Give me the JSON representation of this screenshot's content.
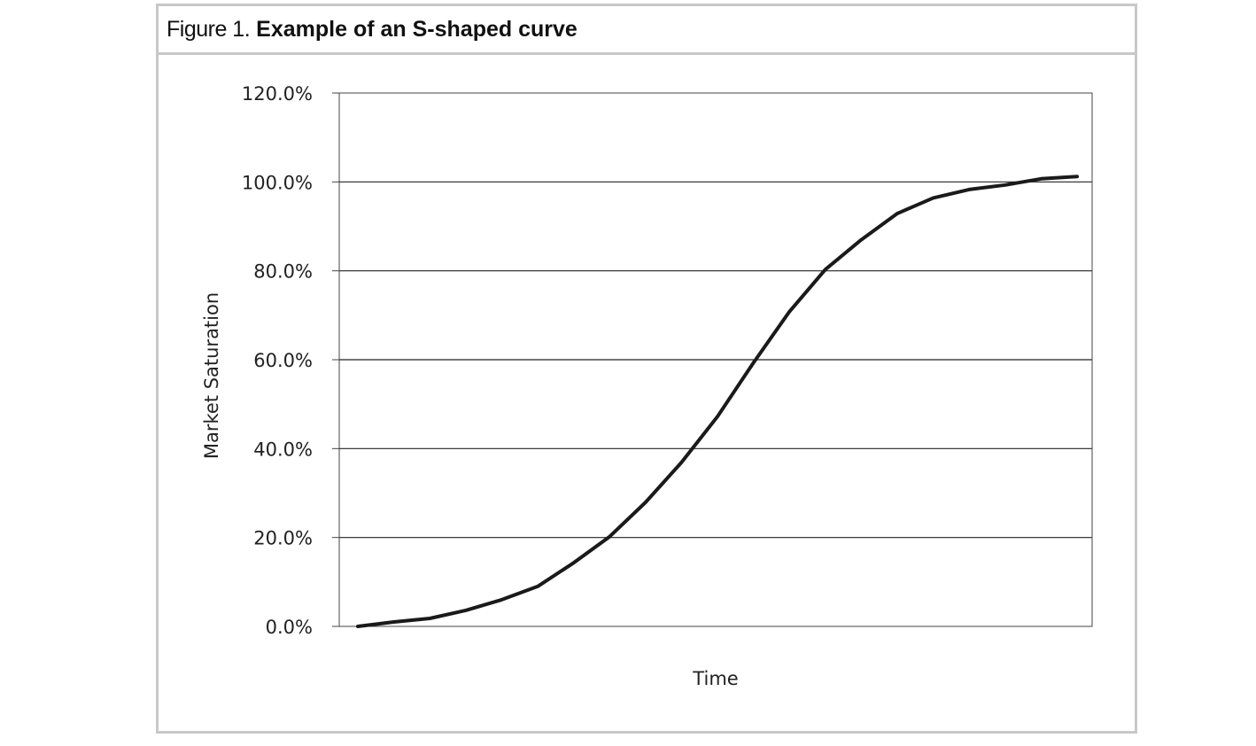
{
  "figure": {
    "prefix": "Figure 1.",
    "title": "Example of an S-shaped curve"
  },
  "chart_data": {
    "type": "line",
    "title": "Example of an S-shaped curve",
    "xlabel": "Time",
    "ylabel": "Market Saturation",
    "ylim": [
      0,
      120
    ],
    "yticks": [
      0,
      20,
      40,
      60,
      80,
      100,
      120
    ],
    "ytick_labels": [
      "0.0%",
      "20.0%",
      "40.0%",
      "60.0%",
      "80.0%",
      "100.0%",
      "120.0%"
    ],
    "grid": "horizontal",
    "legend": "none",
    "x": [
      1,
      2,
      3,
      4,
      5,
      6,
      7,
      8,
      9,
      10,
      11,
      12,
      13,
      14,
      15,
      16,
      17,
      18,
      19,
      20,
      21
    ],
    "series": [
      {
        "values": [
          0,
          1.0,
          1.8,
          3.6,
          6.0,
          9.0,
          14.3,
          20.2,
          27.9,
          36.9,
          47.2,
          59.3,
          70.8,
          80.3,
          87.0,
          92.9,
          96.4,
          98.3,
          99.3,
          100.7,
          101.2
        ],
        "color": "#1a1a1a"
      }
    ]
  }
}
